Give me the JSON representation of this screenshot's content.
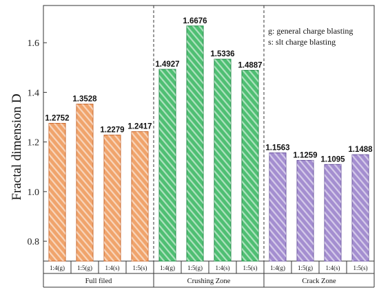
{
  "chart_data": {
    "type": "bar",
    "ylabel": "Fractal dimension D",
    "ylim": [
      0.72,
      1.75
    ],
    "yticks": [
      "0.8",
      "1.0",
      "1.2",
      "1.4",
      "1.6"
    ],
    "yticks_values": [
      0.8,
      1.0,
      1.2,
      1.4,
      1.6
    ],
    "annotations": [
      "g: general charge blasting",
      "s:  slt charge blasting"
    ],
    "groups": [
      {
        "label": "Full filed",
        "color": "#f0a46c",
        "dark": "#c8672e",
        "categories": [
          "1:4(g)",
          "1:5(g)",
          "1:4(s)",
          "1:5(s)"
        ],
        "values": [
          1.2752,
          1.3528,
          1.2279,
          1.2417
        ],
        "value_labels": [
          "1.2752",
          "1.3528",
          "1.2279",
          "1.2417"
        ]
      },
      {
        "label": "Crushing Zone",
        "color": "#4fbf73",
        "dark": "#1f8a45",
        "categories": [
          "1:4(g)",
          "1:5(g)",
          "1:4(s)",
          "1:5(s)"
        ],
        "values": [
          1.4927,
          1.6676,
          1.5336,
          1.4887
        ],
        "value_labels": [
          "1.4927",
          "1.6676",
          "1.5336",
          "1.4887"
        ]
      },
      {
        "label": "Crack Zone",
        "color": "#a48ed0",
        "dark": "#6d57a0",
        "categories": [
          "1:4(g)",
          "1:5(g)",
          "1:4(s)",
          "1:5(s)"
        ],
        "values": [
          1.1563,
          1.1259,
          1.1095,
          1.1488
        ],
        "value_labels": [
          "1.1563",
          "1.1259",
          "1.1095",
          "1.1488"
        ]
      }
    ]
  }
}
